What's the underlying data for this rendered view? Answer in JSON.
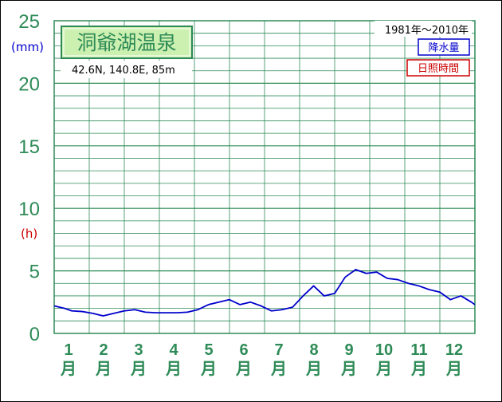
{
  "colors": {
    "grid": "#2e8b57",
    "axis_text": "#2e8b57",
    "precip": "#0000cc",
    "sunshine": "#cc0000",
    "title_bg": "#ccf0b0"
  },
  "chart_data": {
    "type": "line",
    "title": "洞爺湖温泉",
    "location": "42.6N,  140.8E,  85m",
    "period": "1981年～2010年",
    "yunit_precip": "(mm)",
    "yunit_sun": "(h)",
    "ylim": [
      0,
      25
    ],
    "yticks": [
      "0",
      "5",
      "10",
      "15",
      "20",
      "25"
    ],
    "months": [
      "1",
      "2",
      "3",
      "4",
      "5",
      "6",
      "7",
      "8",
      "9",
      "10",
      "11",
      "12"
    ],
    "month_suffix": "月",
    "legend": [
      "降水量",
      "日照時間"
    ],
    "grid": true,
    "series": [
      {
        "name": "降水量",
        "x": [
          0.5,
          0.8,
          1.0,
          1.3,
          1.6,
          1.9,
          2.2,
          2.5,
          2.8,
          3.1,
          3.4,
          3.7,
          4.0,
          4.3,
          4.6,
          4.9,
          5.2,
          5.5,
          5.8,
          6.1,
          6.4,
          6.7,
          7.0,
          7.3,
          7.6,
          7.9,
          8.2,
          8.5,
          8.8,
          9.1,
          9.4,
          9.7,
          10.0,
          10.3,
          10.6,
          10.9,
          11.2,
          11.5,
          11.8,
          12.1,
          12.4,
          12.5
        ],
        "values": [
          2.2,
          2.0,
          1.8,
          1.75,
          1.6,
          1.4,
          1.6,
          1.8,
          1.9,
          1.7,
          1.65,
          1.65,
          1.65,
          1.7,
          1.9,
          2.3,
          2.5,
          2.7,
          2.3,
          2.5,
          2.2,
          1.8,
          1.9,
          2.1,
          3.0,
          3.8,
          3.0,
          3.2,
          4.5,
          5.1,
          4.8,
          4.9,
          4.4,
          4.3,
          4.0,
          3.8,
          3.5,
          3.3,
          2.7,
          3.0,
          2.5,
          2.3
        ]
      }
    ]
  }
}
